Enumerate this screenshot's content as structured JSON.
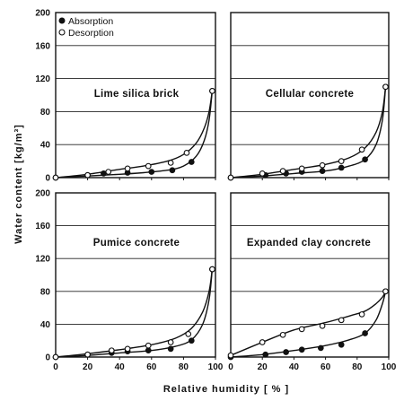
{
  "chart_data": [
    {
      "type": "scatter",
      "title": "Lime silica brick",
      "legend": [
        "Absorption",
        "Desorption"
      ],
      "legend_placement": "top-left",
      "xlim": [
        0,
        100
      ],
      "ylim": [
        0,
        200
      ],
      "xticks": [
        0,
        20,
        40,
        60,
        80,
        100
      ],
      "yticks": [
        0,
        40,
        80,
        120,
        160,
        200
      ],
      "series": [
        {
          "name": "Absorption",
          "marker": "filled-circle",
          "x": [
            0,
            20,
            30,
            45,
            60,
            73,
            85,
            98
          ],
          "y": [
            0,
            3,
            5,
            6,
            7,
            9,
            19,
            105
          ]
        },
        {
          "name": "Desorption",
          "marker": "open-circle",
          "x": [
            0,
            20,
            33,
            45,
            58,
            72,
            82,
            98
          ],
          "y": [
            0,
            3,
            7,
            11,
            14,
            18,
            30,
            105
          ]
        }
      ],
      "curves": {
        "Absorption": [
          [
            0,
            0
          ],
          [
            20,
            2
          ],
          [
            40,
            4
          ],
          [
            55,
            6
          ],
          [
            70,
            9
          ],
          [
            80,
            14
          ],
          [
            88,
            26
          ],
          [
            93,
            45
          ],
          [
            96,
            70
          ],
          [
            98,
            105
          ]
        ],
        "Desorption": [
          [
            0,
            0
          ],
          [
            20,
            4
          ],
          [
            40,
            10
          ],
          [
            55,
            14
          ],
          [
            70,
            20
          ],
          [
            80,
            28
          ],
          [
            88,
            42
          ],
          [
            93,
            60
          ],
          [
            96,
            80
          ],
          [
            98,
            105
          ]
        ]
      }
    },
    {
      "type": "scatter",
      "title": "Cellular concrete",
      "xlim": [
        0,
        100
      ],
      "ylim": [
        0,
        200
      ],
      "xticks": [
        0,
        20,
        40,
        60,
        80,
        100
      ],
      "yticks": [
        0,
        40,
        80,
        120,
        160,
        200
      ],
      "series": [
        {
          "name": "Absorption",
          "marker": "filled-circle",
          "x": [
            0,
            22,
            35,
            45,
            58,
            70,
            85,
            98
          ],
          "y": [
            0,
            3,
            5,
            7,
            8,
            12,
            22,
            110
          ]
        },
        {
          "name": "Desorption",
          "marker": "open-circle",
          "x": [
            0,
            20,
            33,
            45,
            58,
            70,
            83,
            98
          ],
          "y": [
            0,
            5,
            8,
            11,
            15,
            20,
            34,
            110
          ]
        }
      ],
      "curves": {
        "Absorption": [
          [
            0,
            0
          ],
          [
            20,
            2
          ],
          [
            40,
            5
          ],
          [
            60,
            8
          ],
          [
            75,
            14
          ],
          [
            85,
            22
          ],
          [
            92,
            40
          ],
          [
            96,
            70
          ],
          [
            98,
            110
          ]
        ],
        "Desorption": [
          [
            0,
            0
          ],
          [
            20,
            4
          ],
          [
            40,
            10
          ],
          [
            60,
            16
          ],
          [
            75,
            24
          ],
          [
            85,
            36
          ],
          [
            92,
            55
          ],
          [
            96,
            80
          ],
          [
            98,
            110
          ]
        ]
      }
    },
    {
      "type": "scatter",
      "title": "Pumice concrete",
      "xlim": [
        0,
        100
      ],
      "ylim": [
        0,
        200
      ],
      "xticks": [
        0,
        20,
        40,
        60,
        80,
        100
      ],
      "yticks": [
        0,
        40,
        80,
        120,
        160,
        200
      ],
      "series": [
        {
          "name": "Absorption",
          "marker": "filled-circle",
          "x": [
            0,
            20,
            35,
            45,
            58,
            72,
            85,
            98
          ],
          "y": [
            0,
            3,
            5,
            7,
            8,
            10,
            20,
            107
          ]
        },
        {
          "name": "Desorption",
          "marker": "open-circle",
          "x": [
            0,
            20,
            35,
            45,
            58,
            72,
            83,
            98
          ],
          "y": [
            0,
            3,
            8,
            10,
            14,
            18,
            28,
            107
          ]
        }
      ],
      "curves": {
        "Absorption": [
          [
            0,
            0
          ],
          [
            20,
            2
          ],
          [
            40,
            5
          ],
          [
            60,
            8
          ],
          [
            75,
            13
          ],
          [
            85,
            21
          ],
          [
            92,
            40
          ],
          [
            96,
            70
          ],
          [
            98,
            107
          ]
        ],
        "Desorption": [
          [
            0,
            0
          ],
          [
            20,
            4
          ],
          [
            40,
            9
          ],
          [
            60,
            15
          ],
          [
            75,
            23
          ],
          [
            85,
            35
          ],
          [
            92,
            55
          ],
          [
            96,
            80
          ],
          [
            98,
            107
          ]
        ]
      }
    },
    {
      "type": "scatter",
      "title": "Expanded clay concrete",
      "xlim": [
        0,
        100
      ],
      "ylim": [
        0,
        200
      ],
      "xticks": [
        0,
        20,
        40,
        60,
        80,
        100
      ],
      "yticks": [
        0,
        40,
        80,
        120,
        160,
        200
      ],
      "series": [
        {
          "name": "Absorption",
          "marker": "filled-circle",
          "x": [
            0,
            22,
            35,
            45,
            57,
            70,
            85,
            98
          ],
          "y": [
            0,
            3,
            6,
            9,
            11,
            15,
            29,
            80
          ]
        },
        {
          "name": "Desorption",
          "marker": "open-circle",
          "x": [
            0,
            20,
            33,
            45,
            58,
            70,
            83,
            98
          ],
          "y": [
            2,
            18,
            27,
            34,
            38,
            45,
            52,
            80
          ]
        }
      ],
      "curves": {
        "Absorption": [
          [
            0,
            0
          ],
          [
            20,
            3
          ],
          [
            40,
            8
          ],
          [
            60,
            14
          ],
          [
            75,
            21
          ],
          [
            85,
            29
          ],
          [
            92,
            45
          ],
          [
            96,
            65
          ],
          [
            98,
            80
          ]
        ],
        "Desorption": [
          [
            0,
            2
          ],
          [
            20,
            18
          ],
          [
            40,
            33
          ],
          [
            60,
            42
          ],
          [
            75,
            50
          ],
          [
            85,
            56
          ],
          [
            92,
            65
          ],
          [
            96,
            73
          ],
          [
            98,
            80
          ]
        ]
      }
    }
  ],
  "axes": {
    "ylabel": "Water content  [kg/m³]",
    "xlabel": "Relative  humidity    [ % ]"
  }
}
